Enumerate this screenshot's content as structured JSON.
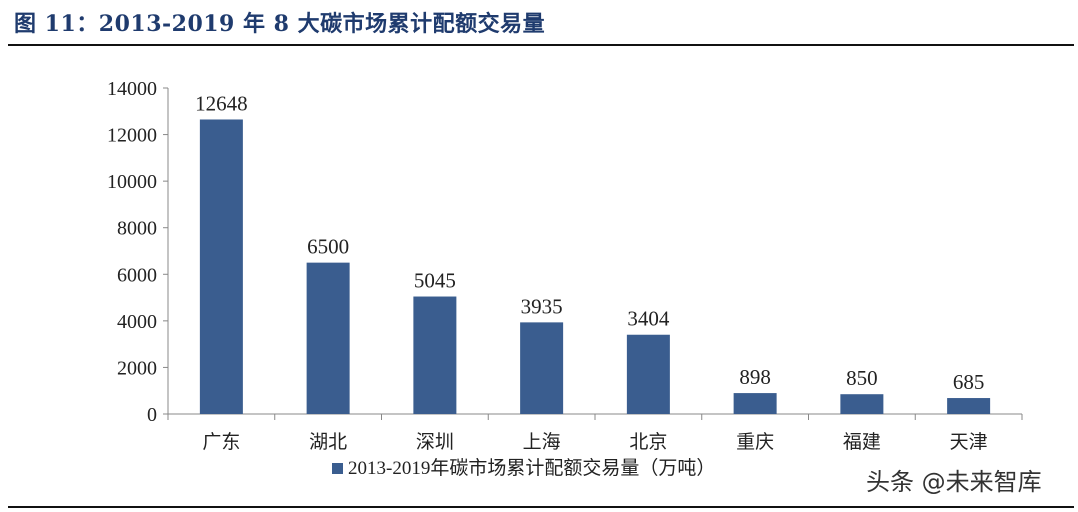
{
  "figure": {
    "title": "图 11：2013-2019 年 8 大碳市场累计配额交易量"
  },
  "watermark": {
    "text": "头条 @未来智库"
  },
  "colors": {
    "bar": "#3a5d8f",
    "axis": "#888888",
    "text": "#222222",
    "title": "#1f3b6e"
  },
  "chart_data": {
    "type": "bar",
    "categories": [
      "广东",
      "湖北",
      "深圳",
      "上海",
      "北京",
      "重庆",
      "福建",
      "天津"
    ],
    "series": [
      {
        "name": "2013-2019年碳市场累计配额交易量（万吨）",
        "values": [
          12648,
          6500,
          5045,
          3935,
          3404,
          898,
          850,
          685
        ]
      }
    ],
    "data_labels": [
      "12648",
      "6500",
      "5045",
      "3935",
      "3404",
      "898",
      "850",
      "685"
    ],
    "y_ticks": [
      "0",
      "2000",
      "4000",
      "6000",
      "8000",
      "10000",
      "12000",
      "14000"
    ],
    "ylim": [
      0,
      14000
    ],
    "title": "",
    "xlabel": "",
    "ylabel": "",
    "grid": false,
    "legend_position": "bottom"
  }
}
